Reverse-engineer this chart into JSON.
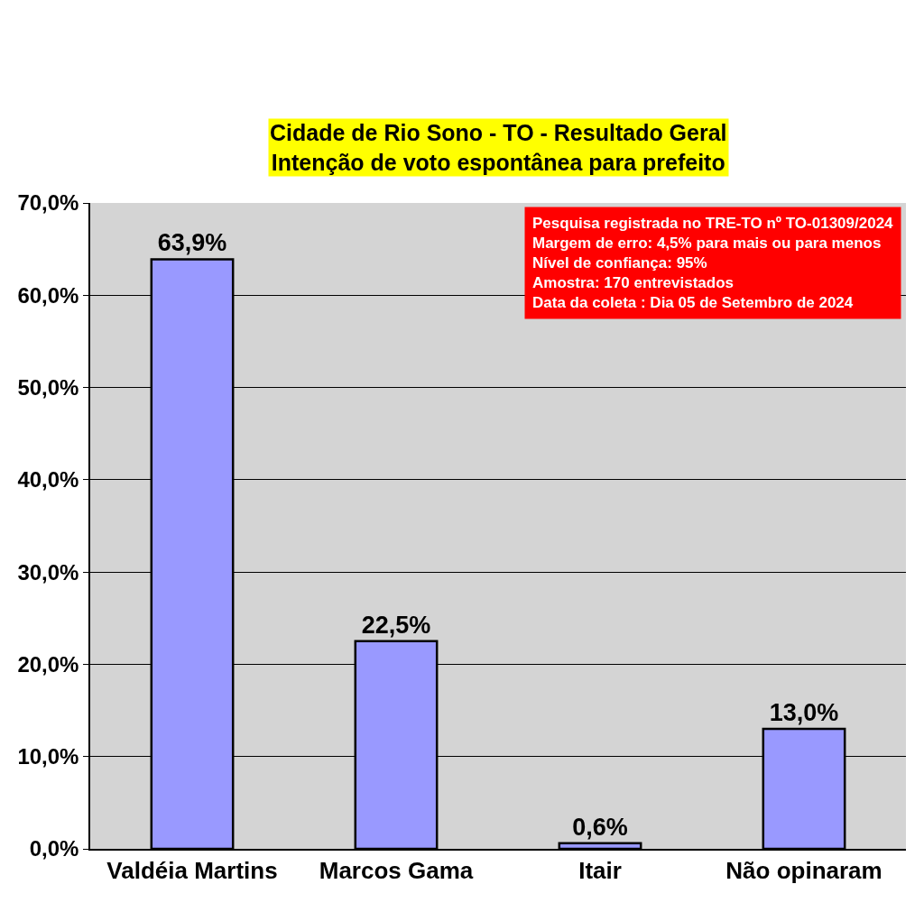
{
  "chart_data": {
    "type": "bar",
    "title": "Cidade de Rio Sono - TO - Resultado Geral\nIntenção de voto espontânea para prefeito",
    "categories": [
      "Valdéia Martins",
      "Marcos Gama",
      "Itair",
      "Não opinaram"
    ],
    "values": [
      63.9,
      22.5,
      0.6,
      13.0
    ],
    "value_labels": [
      "63,9%",
      "22,5%",
      "0,6%",
      "13,0%"
    ],
    "color": "#9999ff",
    "ylim": [
      0,
      70
    ],
    "yticks": [
      {
        "value": 0,
        "label": "0,0%"
      },
      {
        "value": 10,
        "label": "10,0%"
      },
      {
        "value": 20,
        "label": "20,0%"
      },
      {
        "value": 30,
        "label": "30,0%"
      },
      {
        "value": 40,
        "label": "40,0%"
      },
      {
        "value": 50,
        "label": "50,0%"
      },
      {
        "value": 60,
        "label": "60,0%"
      },
      {
        "value": 70,
        "label": "70,0%"
      }
    ],
    "grid": "y",
    "annotations": [
      "Pesquisa registrada no TRE-TO nº TO-01309/2024",
      "Margem de erro: 4,5% para mais ou para menos",
      "Nível de confiança: 95%",
      "Amostra: 170 entrevistados",
      "Data da coleta : Dia 05 de Setembro de 2024"
    ]
  }
}
